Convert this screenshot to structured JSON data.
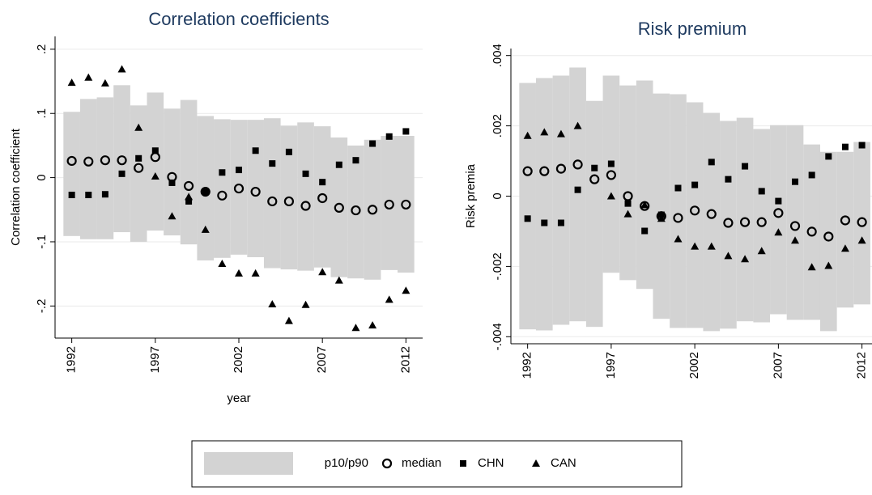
{
  "chart_data": [
    {
      "type": "scatter",
      "title": "Correlation coefficients",
      "xlabel": "year",
      "ylabel": "Correlation coefficient",
      "x": [
        1992,
        1993,
        1994,
        1995,
        1996,
        1997,
        1998,
        1999,
        2000,
        2001,
        2002,
        2003,
        2004,
        2005,
        2006,
        2007,
        2008,
        2009,
        2010,
        2011,
        2012
      ],
      "xlim": [
        1991,
        2013
      ],
      "xticks": [
        1992,
        1997,
        2002,
        2007,
        2012
      ],
      "ylim": [
        -0.25,
        0.22
      ],
      "yticks": [
        {
          "value": -0.2,
          "label": "-.2"
        },
        {
          "value": -0.1,
          "label": "-.1"
        },
        0,
        {
          "value": 0.1,
          "label": ".1"
        },
        {
          "value": 0.2,
          "label": ".2"
        }
      ],
      "grid": true,
      "series": [
        {
          "name": "p10/p90",
          "marker": "band",
          "color": "#d3d3d3",
          "values": [
            0.1025,
            0.1225,
            0.125,
            0.144,
            0.1125,
            0.1325,
            0.1075,
            0.121,
            0.096,
            0.091,
            0.09,
            0.09,
            0.0925,
            0.081,
            0.086,
            0.08,
            0.0625,
            0.05,
            0.059,
            0.065,
            0.065
          ],
          "lower": [
            -0.091,
            -0.096,
            -0.096,
            -0.085,
            -0.1,
            -0.0825,
            -0.09,
            -0.104,
            -0.129,
            -0.125,
            -0.12,
            -0.124,
            -0.141,
            -0.143,
            -0.145,
            -0.14,
            -0.155,
            -0.157,
            -0.159,
            -0.144,
            -0.148
          ]
        },
        {
          "name": "median",
          "marker": "circle",
          "color": "#000000",
          "values": [
            0.026,
            0.025,
            0.027,
            0.027,
            0.015,
            0.032,
            0.001,
            -0.013,
            -0.022,
            -0.028,
            -0.017,
            -0.022,
            -0.037,
            -0.037,
            -0.044,
            -0.032,
            -0.047,
            -0.051,
            -0.05,
            -0.042,
            -0.042
          ]
        },
        {
          "name": "CHN",
          "marker": "square",
          "color": "#000000",
          "values": [
            -0.027,
            -0.027,
            -0.026,
            0.006,
            0.03,
            0.042,
            -0.008,
            -0.037,
            -0.022,
            0.008,
            0.012,
            0.042,
            0.022,
            0.04,
            0.006,
            -0.007,
            0.02,
            0.027,
            0.053,
            0.064,
            0.072
          ]
        },
        {
          "name": "CAN",
          "marker": "triangle",
          "color": "#000000",
          "values": [
            0.148,
            0.156,
            0.147,
            0.169,
            0.078,
            0.002,
            -0.06,
            -0.03,
            -0.081,
            -0.134,
            -0.149,
            -0.149,
            -0.197,
            -0.223,
            -0.198,
            -0.147,
            -0.16,
            -0.234,
            -0.23,
            -0.19,
            -0.176
          ]
        }
      ]
    },
    {
      "type": "scatter",
      "title": "Risk premium",
      "ylabel": "Risk premia",
      "x": [
        1992,
        1993,
        1994,
        1995,
        1996,
        1997,
        1998,
        1999,
        2000,
        2001,
        2002,
        2003,
        2004,
        2005,
        2006,
        2007,
        2008,
        2009,
        2010,
        2011,
        2012
      ],
      "xlim": [
        1991,
        2012.6
      ],
      "xticks": [
        1992,
        1997,
        2002,
        2007,
        2012
      ],
      "ylim": [
        -0.0042,
        0.0042
      ],
      "yticks": [
        {
          "value": -0.004,
          "label": "-.004"
        },
        {
          "value": -0.002,
          "label": "-.002"
        },
        0,
        {
          "value": 0.002,
          "label": ".002"
        },
        {
          "value": 0.004,
          "label": ".004"
        }
      ],
      "grid": true,
      "series": [
        {
          "marker": "band",
          "color": "#d3d3d3",
          "values": [
            0.00322,
            0.00336,
            0.00343,
            0.00366,
            0.00271,
            0.00343,
            0.00315,
            0.00329,
            0.00292,
            0.0029,
            0.00267,
            0.00237,
            0.00214,
            0.00223,
            0.00191,
            0.00202,
            0.00202,
            0.00147,
            0.00126,
            0.00126,
            0.00154
          ],
          "lower": [
            -0.00379,
            -0.00382,
            -0.00366,
            -0.00356,
            -0.00372,
            -0.00218,
            -0.00239,
            -0.00264,
            -0.00349,
            -0.00375,
            -0.00375,
            -0.00384,
            -0.00377,
            -0.00356,
            -0.00359,
            -0.00336,
            -0.00352,
            -0.00352,
            -0.00384,
            -0.00317,
            -0.00308
          ]
        },
        {
          "marker": "circle",
          "color": "#000000",
          "values": [
            0.00071,
            0.00071,
            0.00078,
            0.0009,
            0.00048,
            0.0006,
            0,
            -0.00028,
            -0.00057,
            -0.00062,
            -0.00041,
            -0.00051,
            -0.00076,
            -0.00074,
            -0.00074,
            -0.00048,
            -0.00085,
            -0.00101,
            -0.00115,
            -0.00069,
            -0.00074
          ]
        },
        {
          "marker": "square",
          "color": "#000000",
          "values": [
            -0.00064,
            -0.00076,
            -0.00076,
            0.00018,
            0.0008,
            0.00092,
            -0.00021,
            -0.00099,
            -0.00053,
            0.00023,
            0.00032,
            0.00097,
            0.00048,
            0.00085,
            0.00014,
            -0.00014,
            0.00041,
            0.0006,
            0.00113,
            0.0014,
            0.00145
          ]
        },
        {
          "marker": "triangle",
          "color": "#000000",
          "values": [
            0.00172,
            0.00182,
            0.00177,
            0.002,
            null,
            0,
            -0.00051,
            -0.00025,
            -0.00064,
            -0.00122,
            -0.00143,
            -0.00143,
            -0.0017,
            -0.00179,
            -0.00156,
            -0.00103,
            -0.00126,
            -0.00202,
            -0.00198,
            -0.00149,
            -0.00126
          ]
        }
      ]
    }
  ]
}
